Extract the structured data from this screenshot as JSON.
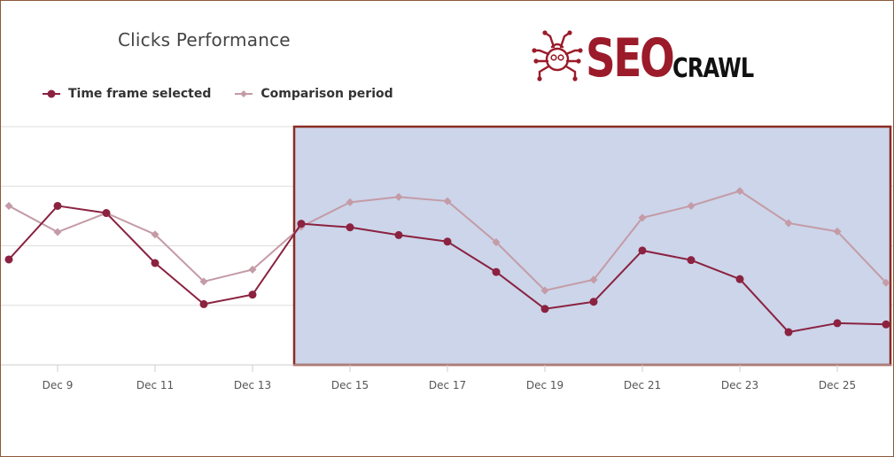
{
  "header": {
    "title": "Clicks Performance"
  },
  "logo": {
    "text_main": "SEO",
    "text_secondary": "CRAWL",
    "color_main": "#9b1b2a",
    "color_secondary": "#111111"
  },
  "colors": {
    "selected": "#8b2240",
    "comparison": "#c49ba6",
    "highlight_fill": "#ccd5ea",
    "highlight_border": "#8b2b22",
    "grid": "#dddddd"
  },
  "chart_data": {
    "type": "line",
    "title": "Clicks Performance",
    "x": [
      "Dec 8",
      "Dec 9",
      "Dec 10",
      "Dec 11",
      "Dec 12",
      "Dec 13",
      "Dec 14",
      "Dec 15",
      "Dec 16",
      "Dec 17",
      "Dec 18",
      "Dec 19",
      "Dec 20",
      "Dec 21",
      "Dec 22",
      "Dec 23",
      "Dec 24",
      "Dec 25",
      "Dec 26"
    ],
    "tick_labels": [
      "Dec 9",
      "Dec 11",
      "Dec 13",
      "Dec 15",
      "Dec 17",
      "Dec 19",
      "Dec 21",
      "Dec 23",
      "Dec 25"
    ],
    "tick_indices": [
      1,
      3,
      5,
      7,
      9,
      11,
      13,
      15,
      17
    ],
    "ylim": [
      0,
      4
    ],
    "grid": true,
    "legend_position": "top-left",
    "highlight_range": [
      "Dec 14",
      "Dec 26"
    ],
    "series": [
      {
        "name": "Time frame selected",
        "marker": "circle",
        "values": [
          1.77,
          2.67,
          2.55,
          1.71,
          1.02,
          1.18,
          2.37,
          2.31,
          2.18,
          2.07,
          1.56,
          0.94,
          1.06,
          1.92,
          1.76,
          1.44,
          0.55,
          0.7,
          0.68
        ]
      },
      {
        "name": "Comparison period",
        "marker": "diamond",
        "values": [
          2.67,
          2.23,
          2.55,
          2.19,
          1.4,
          1.6,
          2.32,
          2.73,
          2.82,
          2.75,
          2.06,
          1.25,
          1.43,
          2.47,
          2.67,
          2.92,
          2.38,
          2.24,
          1.38
        ]
      }
    ]
  }
}
